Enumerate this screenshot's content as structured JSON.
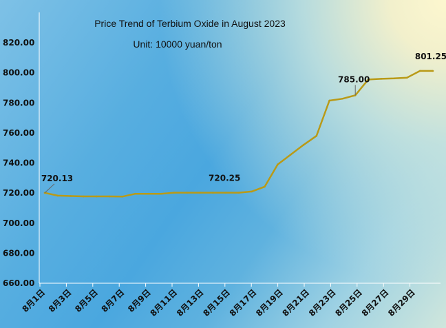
{
  "chart_data": {
    "type": "line",
    "title": "Price Trend of Terbium Oxide in August 2023",
    "subtitle": "Unit: 10000 yuan/ton",
    "xlabel": "",
    "ylabel": "",
    "ylim": [
      660,
      820
    ],
    "yticks": [
      "660.00",
      "680.00",
      "700.00",
      "720.00",
      "740.00",
      "760.00",
      "780.00",
      "800.00",
      "820.00"
    ],
    "xtick_labels": [
      "8月1日",
      "8月3日",
      "8月5日",
      "8月7日",
      "8月9日",
      "8月11日",
      "8月13日",
      "8月15日",
      "8月17日",
      "8月19日",
      "8月21日",
      "8月23日",
      "8月25日",
      "8月27日",
      "8月29日"
    ],
    "x": [
      "8月1日",
      "8月2日",
      "8月3日",
      "8月4日",
      "8月5日",
      "8月6日",
      "8月7日",
      "8月8日",
      "8月9日",
      "8月10日",
      "8月11日",
      "8月12日",
      "8月13日",
      "8月14日",
      "8月15日",
      "8月16日",
      "8月17日",
      "8月18日",
      "8月19日",
      "8月20日",
      "8月21日",
      "8月22日",
      "8月23日",
      "8月24日",
      "8月25日",
      "8月26日",
      "8月27日",
      "8月28日",
      "8月29日",
      "8月30日",
      "8月31日"
    ],
    "series": [
      {
        "color": "#b99a17",
        "values": [
          720.13,
          718.25,
          718.0,
          717.75,
          717.75,
          717.75,
          717.63,
          719.5,
          719.5,
          719.5,
          720.25,
          720.25,
          720.25,
          720.25,
          720.25,
          720.25,
          721.0,
          724.25,
          739.0,
          745.5,
          752.0,
          758.0,
          781.5,
          782.75,
          785.0,
          795.5,
          796.0,
          796.25,
          796.75,
          801.25,
          801.25
        ]
      }
    ],
    "data_labels": [
      {
        "index": 0,
        "text": "720.13"
      },
      {
        "index": 14,
        "text": "720.25"
      },
      {
        "index": 24,
        "text": "785.00"
      },
      {
        "index": 30,
        "text": "801.25"
      }
    ],
    "grid": false,
    "legend": "none"
  },
  "colors": {
    "line": "#b99a17",
    "axis": "#ffffff",
    "text": "#111111"
  }
}
